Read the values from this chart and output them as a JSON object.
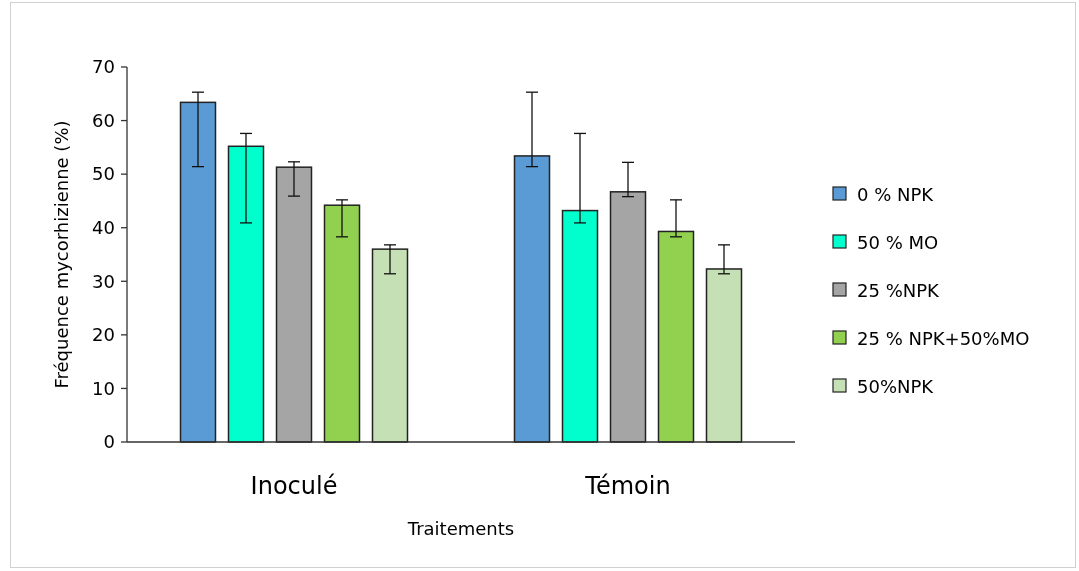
{
  "chart_data": {
    "type": "bar",
    "xlabel": "Traitements",
    "ylabel": "Fréquence mycorhizienne (%)",
    "categories": [
      "Inoculé",
      "Témoin"
    ],
    "ylim": [
      0,
      70
    ],
    "yticks": [
      0,
      10,
      20,
      30,
      40,
      50,
      60,
      70
    ],
    "grid": false,
    "legend": "right",
    "series": [
      {
        "name": "0 % NPK",
        "color": "#5b9bd5",
        "values": [
          63.4,
          53.4
        ],
        "errors": [
          [
            51.4,
            65.3
          ],
          [
            51.4,
            65.3
          ]
        ]
      },
      {
        "name": "50 % MO",
        "color": "#00ffcc",
        "values": [
          55.2,
          43.2
        ],
        "errors": [
          [
            40.9,
            57.6
          ],
          [
            40.9,
            57.6
          ]
        ]
      },
      {
        "name": "25 %NPK",
        "color": "#a5a5a5",
        "values": [
          51.3,
          46.7
        ],
        "errors": [
          [
            45.9,
            52.3
          ],
          [
            45.8,
            52.2
          ]
        ]
      },
      {
        "name": "25 % NPK+50%MO",
        "color": "#92d050",
        "values": [
          44.2,
          39.3
        ],
        "errors": [
          [
            38.3,
            45.2
          ],
          [
            38.3,
            45.2
          ]
        ]
      },
      {
        "name": "50%NPK",
        "color": "#c5e0b4",
        "values": [
          36.0,
          32.3
        ],
        "errors": [
          [
            31.4,
            36.8
          ],
          [
            31.4,
            36.8
          ]
        ]
      }
    ]
  }
}
